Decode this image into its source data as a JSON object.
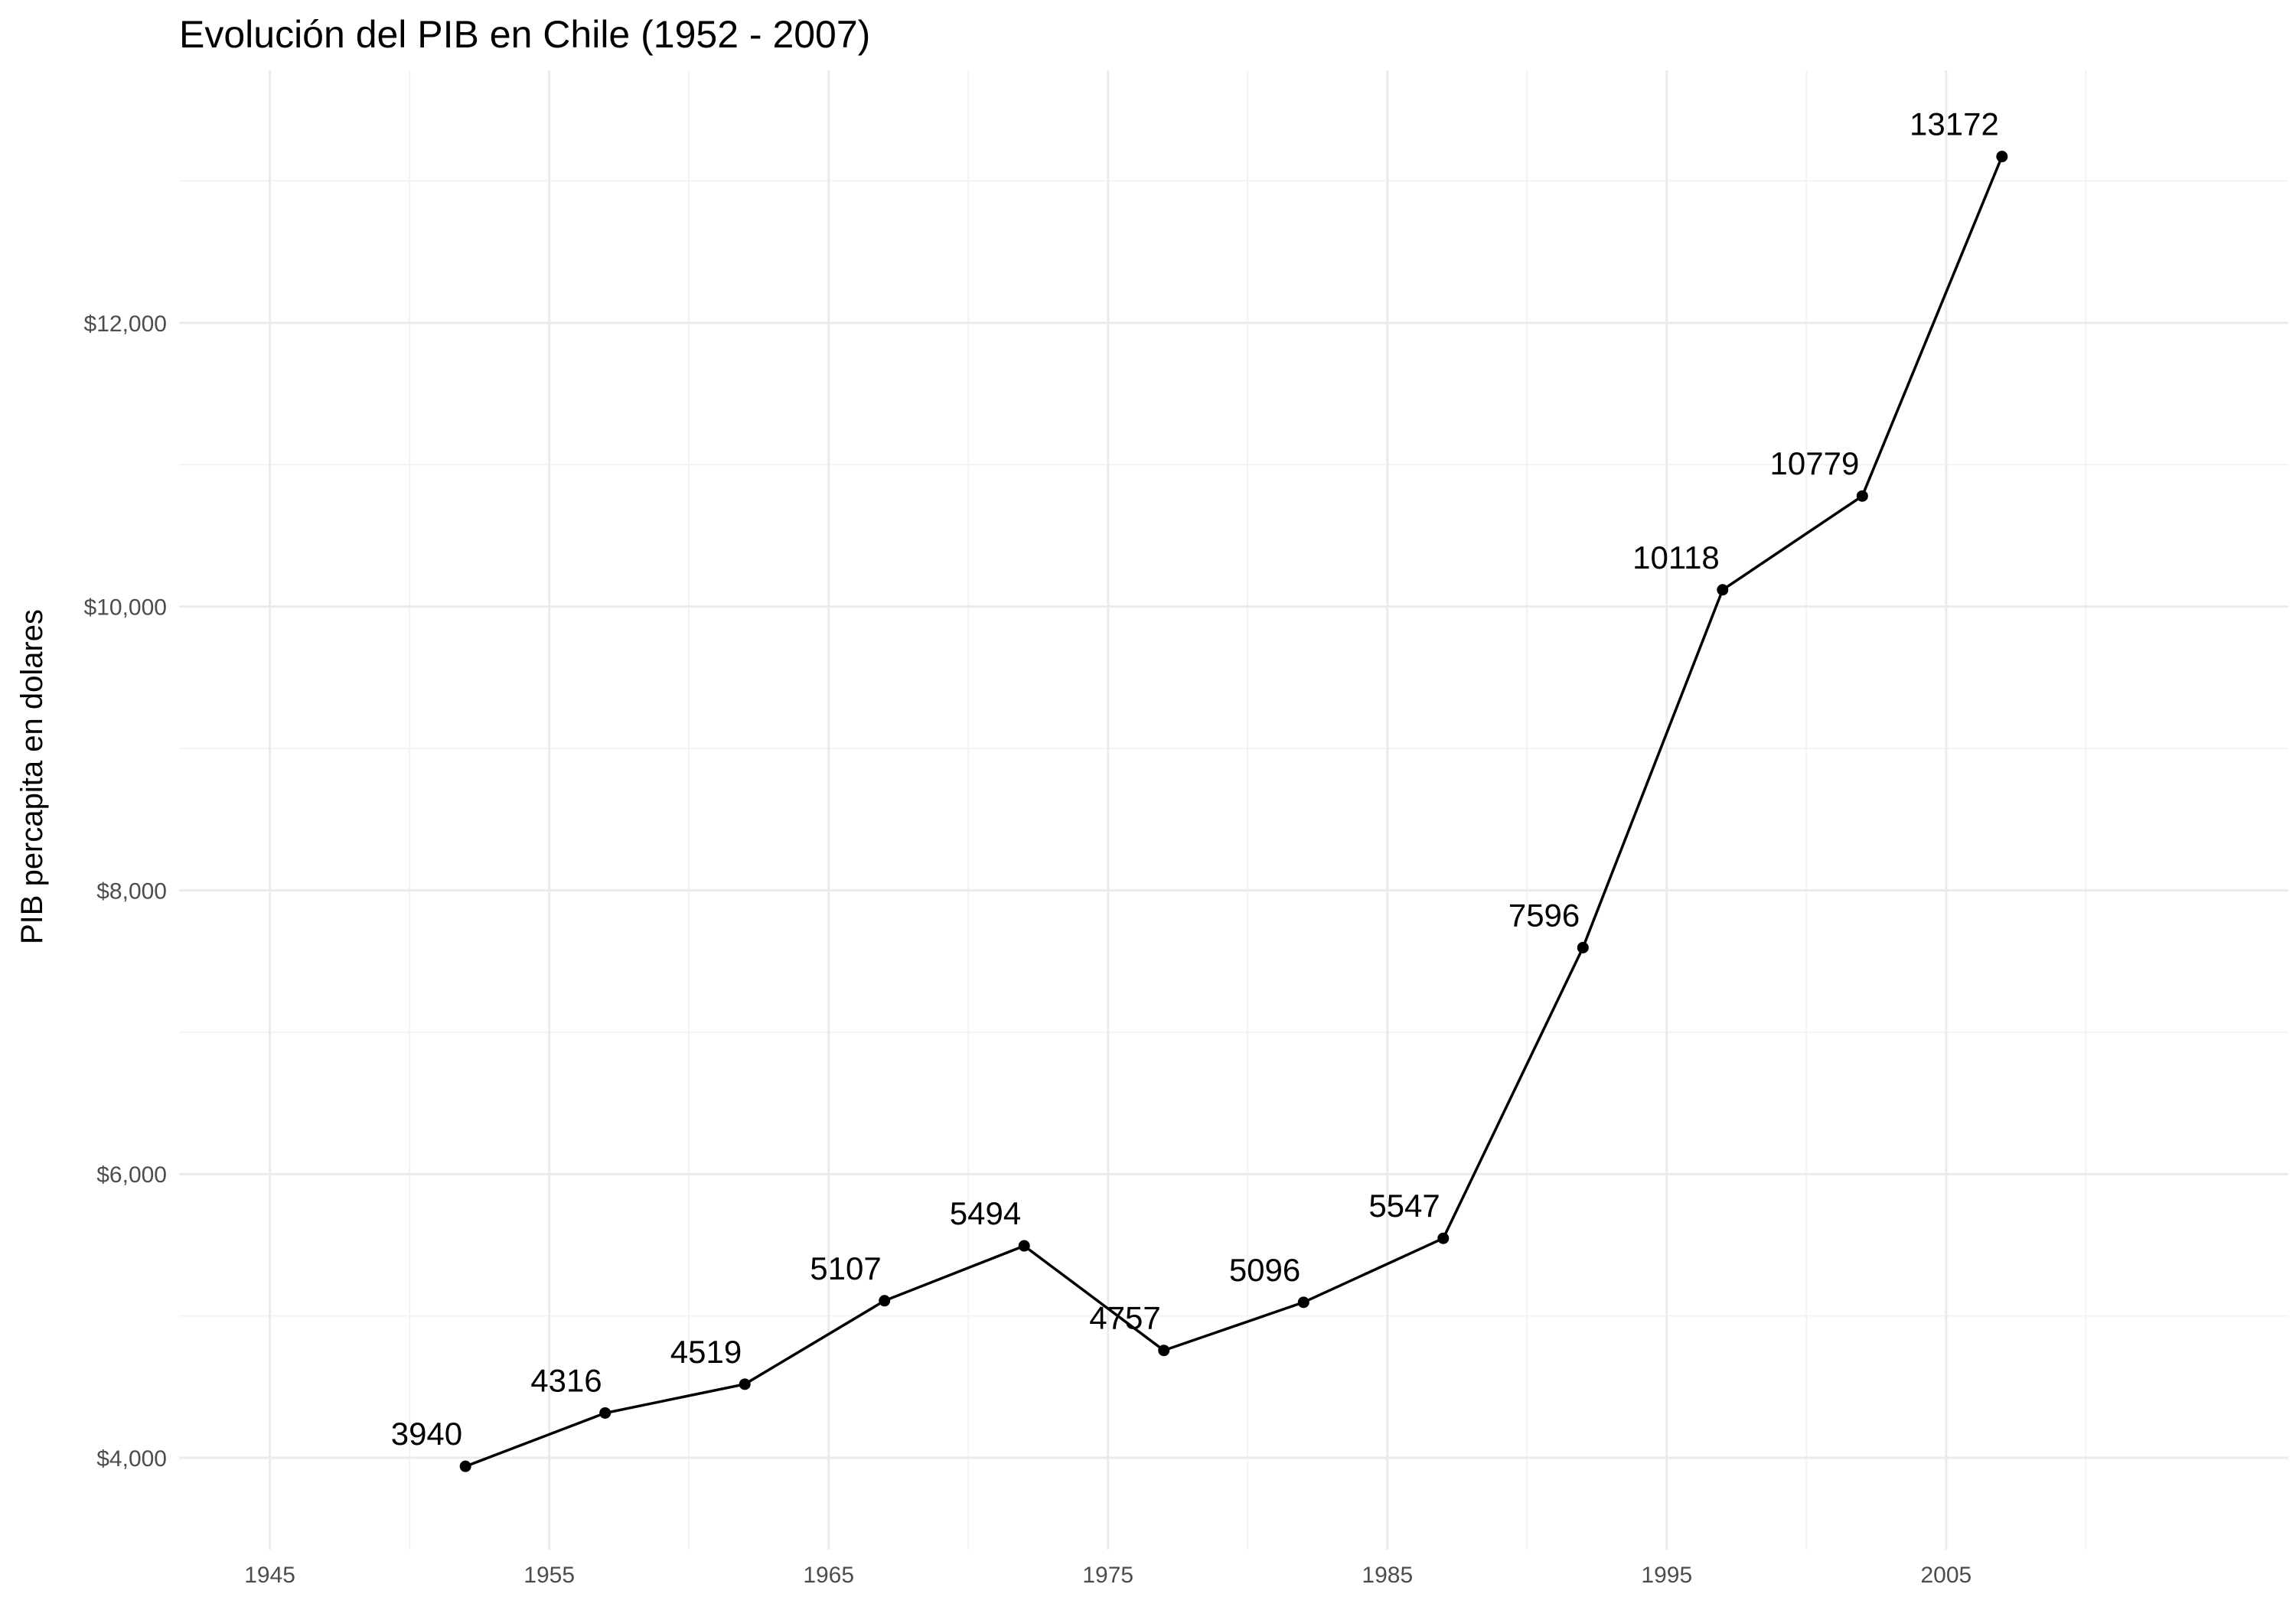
{
  "chart_data": {
    "type": "line",
    "title": "Evolución del PIB en Chile (1952 - 2007)",
    "xlabel": "",
    "ylabel": "PIB percapita en dolares",
    "x": [
      1952,
      1957,
      1962,
      1967,
      1972,
      1977,
      1982,
      1987,
      1992,
      1997,
      2002,
      2007
    ],
    "series": [
      {
        "values": [
          3940,
          4316,
          4519,
          5107,
          5494,
          4757,
          5096,
          5547,
          7596,
          10118,
          10779,
          13172
        ],
        "labels": [
          "3940",
          "4316",
          "4519",
          "5107",
          "5494",
          "4757",
          "5096",
          "5547",
          "7596",
          "10118",
          "10779",
          "13172"
        ],
        "color": "#000000"
      }
    ],
    "xlim": [
      1941.75,
      2017.25
    ],
    "ylim": [
      3353,
      13779
    ],
    "x_ticks": [
      1945,
      1955,
      1965,
      1975,
      1985,
      1995,
      2005
    ],
    "x_tick_labels": [
      "1945",
      "1955",
      "1965",
      "1975",
      "1985",
      "1995",
      "2005"
    ],
    "x_minor_ticks": [
      1950,
      1960,
      1970,
      1980,
      1990,
      2000,
      2010
    ],
    "y_ticks": [
      4000,
      6000,
      8000,
      10000,
      12000
    ],
    "y_tick_labels": [
      "$4,000",
      "$6,000",
      "$8,000",
      "$10,000",
      "$12,000"
    ],
    "y_minor_ticks": [
      5000,
      7000,
      9000,
      11000,
      13000
    ],
    "grid": true,
    "legend": "none",
    "colors": {
      "line": "#000000",
      "grid_major": "#ebebeb",
      "grid_minor": "#f3f3f3",
      "tick_text": "#4d4d4d"
    }
  }
}
